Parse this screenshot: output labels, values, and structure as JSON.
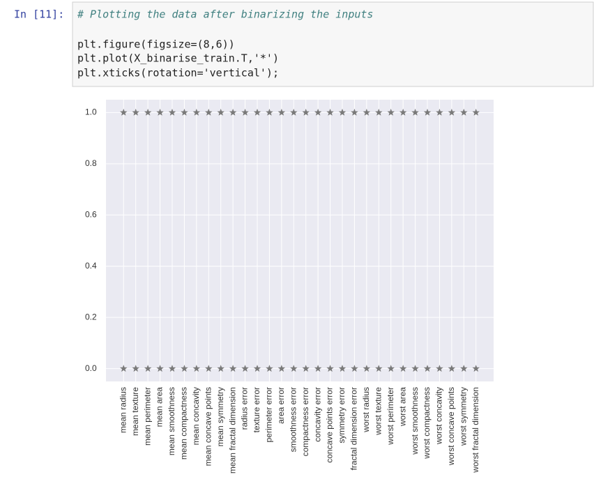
{
  "cell": {
    "prompt": "In [11]:",
    "comment": "# Plotting the data after binarizing the inputs",
    "code": [
      "plt.figure(figsize=(8,6))",
      "plt.plot(X_binarise_train.T,'*')",
      "plt.xticks(rotation='vertical');"
    ]
  },
  "chart_data": {
    "type": "scatter",
    "marker": "*",
    "categories": [
      "mean radius",
      "mean texture",
      "mean perimeter",
      "mean area",
      "mean smoothness",
      "mean compactness",
      "mean concavity",
      "mean concave points",
      "mean symmetry",
      "mean fractal dimension",
      "radius error",
      "texture error",
      "perimeter error",
      "area error",
      "smoothness error",
      "compactness error",
      "concavity error",
      "concave points error",
      "symmetry error",
      "fractal dimension error",
      "worst radius",
      "worst texture",
      "worst perimeter",
      "worst area",
      "worst smoothness",
      "worst compactness",
      "worst concavity",
      "worst concave points",
      "worst symmetry",
      "worst fractal dimension"
    ],
    "series": [
      {
        "color": "#7a7a7a",
        "values": [
          1,
          1,
          1,
          1,
          1,
          1,
          1,
          1,
          1,
          1,
          1,
          1,
          1,
          1,
          1,
          1,
          1,
          1,
          1,
          1,
          1,
          1,
          1,
          1,
          1,
          1,
          1,
          1,
          1,
          1
        ]
      },
      {
        "color": "#7a7a7a",
        "values": [
          0,
          0,
          0,
          0,
          0,
          0,
          0,
          0,
          0,
          0,
          0,
          0,
          0,
          0,
          0,
          0,
          0,
          0,
          0,
          0,
          0,
          0,
          0,
          0,
          0,
          0,
          0,
          0,
          0,
          0
        ]
      }
    ],
    "ylim": [
      -0.05,
      1.05
    ],
    "yticks": [
      {
        "value": 0,
        "label": "0.0"
      },
      0.2,
      0.4,
      0.6,
      0.8,
      {
        "value": 1,
        "label": "1.0"
      }
    ],
    "grid": true
  }
}
